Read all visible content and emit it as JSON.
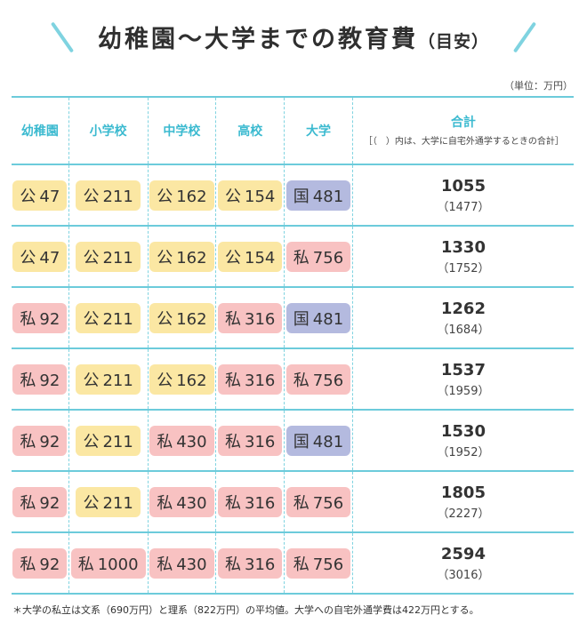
{
  "title": {
    "main": "幼稚園～大学までの教育費",
    "sub": "（目安）"
  },
  "unit": "（単位：万円）",
  "headers": [
    "幼稚園",
    "小学校",
    "中学校",
    "高校",
    "大学"
  ],
  "total_header": {
    "label": "合計",
    "note": "［（　）内は、大学に自宅外通学するときの合計］"
  },
  "colors": {
    "accent": "#4cc5d6",
    "public": "#fbe7a3",
    "private": "#f8c2c2",
    "national": "#b4badf"
  },
  "rows": [
    {
      "cells": [
        {
          "t": "公",
          "v": "47"
        },
        {
          "t": "公",
          "v": "211"
        },
        {
          "t": "公",
          "v": "162"
        },
        {
          "t": "公",
          "v": "154"
        },
        {
          "t": "国",
          "v": "481"
        }
      ],
      "total": "1055",
      "total_away": "（1477）"
    },
    {
      "cells": [
        {
          "t": "公",
          "v": "47"
        },
        {
          "t": "公",
          "v": "211"
        },
        {
          "t": "公",
          "v": "162"
        },
        {
          "t": "公",
          "v": "154"
        },
        {
          "t": "私",
          "v": "756"
        }
      ],
      "total": "1330",
      "total_away": "（1752）"
    },
    {
      "cells": [
        {
          "t": "私",
          "v": "92"
        },
        {
          "t": "公",
          "v": "211"
        },
        {
          "t": "公",
          "v": "162"
        },
        {
          "t": "私",
          "v": "316"
        },
        {
          "t": "国",
          "v": "481"
        }
      ],
      "total": "1262",
      "total_away": "（1684）"
    },
    {
      "cells": [
        {
          "t": "私",
          "v": "92"
        },
        {
          "t": "公",
          "v": "211"
        },
        {
          "t": "公",
          "v": "162"
        },
        {
          "t": "私",
          "v": "316"
        },
        {
          "t": "私",
          "v": "756"
        }
      ],
      "total": "1537",
      "total_away": "（1959）"
    },
    {
      "cells": [
        {
          "t": "私",
          "v": "92"
        },
        {
          "t": "公",
          "v": "211"
        },
        {
          "t": "私",
          "v": "430"
        },
        {
          "t": "私",
          "v": "316"
        },
        {
          "t": "国",
          "v": "481"
        }
      ],
      "total": "1530",
      "total_away": "（1952）"
    },
    {
      "cells": [
        {
          "t": "私",
          "v": "92"
        },
        {
          "t": "公",
          "v": "211"
        },
        {
          "t": "私",
          "v": "430"
        },
        {
          "t": "私",
          "v": "316"
        },
        {
          "t": "私",
          "v": "756"
        }
      ],
      "total": "1805",
      "total_away": "（2227）"
    },
    {
      "cells": [
        {
          "t": "私",
          "v": "92"
        },
        {
          "t": "私",
          "v": "1000"
        },
        {
          "t": "私",
          "v": "430"
        },
        {
          "t": "私",
          "v": "316"
        },
        {
          "t": "私",
          "v": "756"
        }
      ],
      "total": "2594",
      "total_away": "（3016）"
    }
  ],
  "note": "＊大学の私立は文系（690万円）と理系（822万円）の平均値。大学への自宅外通学費は422万円とする。"
}
